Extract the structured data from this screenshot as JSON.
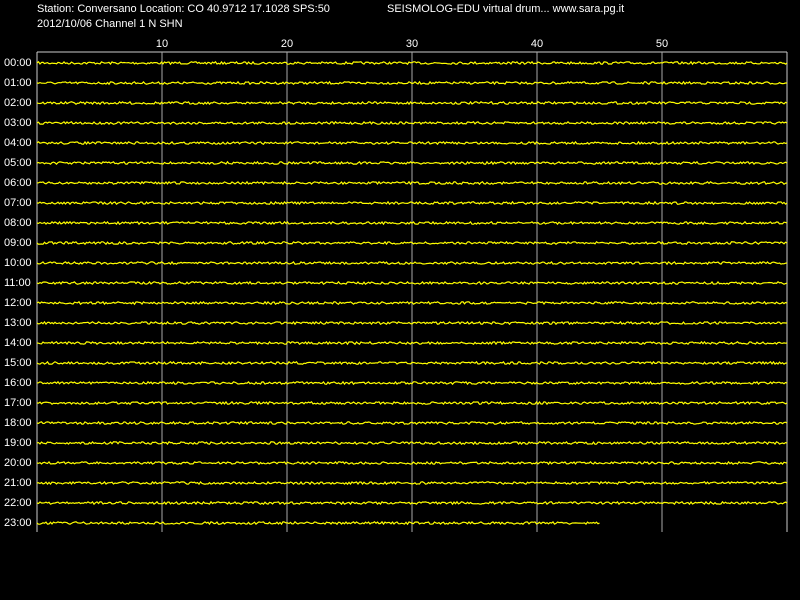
{
  "chart_data": {
    "type": "drum",
    "title": "Station: Conversano Location: CO 40.9712 17.1028 SPS:50",
    "subtitle": "2012/10/06  Channel 1 N SHN",
    "caption": "SEISMOLOG-EDU virtual drum... www.sara.pg.it",
    "categories": [
      "00:00",
      "01:00",
      "02:00",
      "03:00",
      "04:00",
      "05:00",
      "06:00",
      "07:00",
      "08:00",
      "09:00",
      "10:00",
      "11:00",
      "12:00",
      "13:00",
      "14:00",
      "15:00",
      "16:00",
      "17:00",
      "18:00",
      "19:00",
      "20:00",
      "21:00",
      "22:00",
      "23:00"
    ],
    "values": [
      60,
      60,
      60,
      60,
      60,
      60,
      60,
      60,
      60,
      60,
      60,
      60,
      60,
      60,
      60,
      60,
      60,
      60,
      60,
      60,
      60,
      60,
      60,
      45
    ],
    "color": "#ffff00",
    "xlim": [
      0,
      60
    ],
    "xticks": [
      10,
      20,
      30,
      40,
      50
    ],
    "grid": true
  }
}
